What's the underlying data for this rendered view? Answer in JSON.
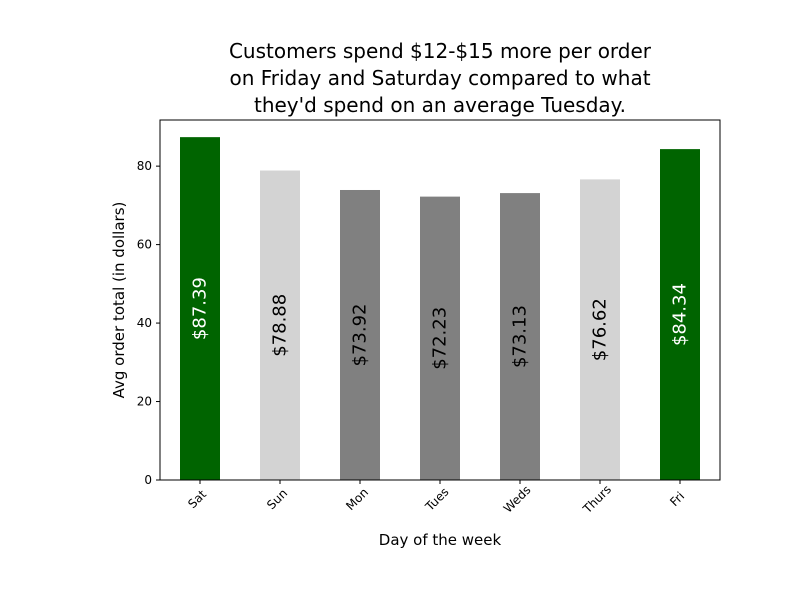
{
  "chart_data": {
    "type": "bar",
    "title_lines": [
      "Customers spend $12-$15 more per order",
      "on Friday and Saturday compared to what",
      "they'd spend on an average Tuesday."
    ],
    "xlabel": "Day of the week",
    "ylabel": "Avg order total (in dollars)",
    "categories": [
      "Sat",
      "Sun",
      "Mon",
      "Tues",
      "Weds",
      "Thurs",
      "Fri"
    ],
    "values": [
      87.39,
      78.88,
      73.92,
      72.23,
      73.13,
      76.62,
      84.34
    ],
    "data_labels": [
      "$87.39",
      "$78.88",
      "$73.92",
      "$72.23",
      "$73.13",
      "$76.62",
      "$84.34"
    ],
    "bar_colors": [
      "#006400",
      "#d3d3d3",
      "#808080",
      "#808080",
      "#808080",
      "#d3d3d3",
      "#006400"
    ],
    "label_colors": [
      "#ffffff",
      "#000000",
      "#000000",
      "#000000",
      "#000000",
      "#000000",
      "#ffffff"
    ],
    "yticks": [
      0,
      20,
      40,
      60,
      80
    ],
    "ylim": [
      0,
      91.76
    ],
    "grid": false,
    "legend": "none"
  }
}
